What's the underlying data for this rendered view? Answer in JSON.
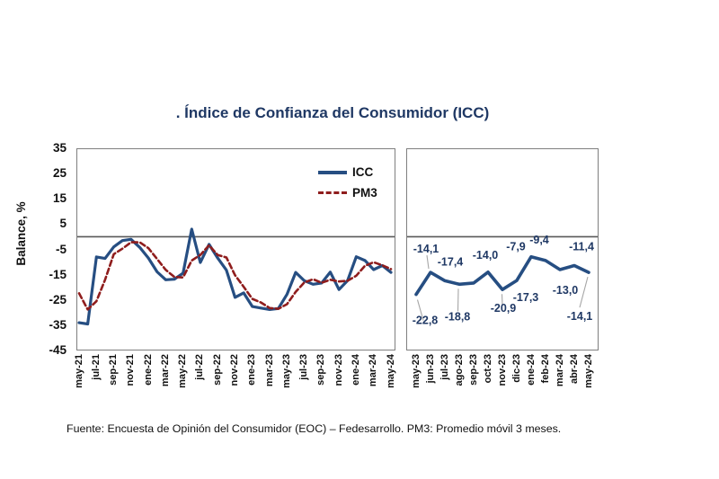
{
  "title": ". Índice de Confianza del Consumidor (ICC)",
  "footer": "Fuente: Encuesta de Opinión del Consumidor (EOC) – Fedesarrollo. PM3: Promedio móvil 3 meses.",
  "y_axis": {
    "label": "Balance, %",
    "ticks": [
      35,
      25,
      15,
      5,
      -5,
      -15,
      -25,
      -35,
      -45
    ],
    "min": -45,
    "max": 35
  },
  "legend": [
    {
      "label": "ICC",
      "style": "solid",
      "color": "#264E82"
    },
    {
      "label": "PM3",
      "style": "dashed",
      "color": "#8F1D1D"
    }
  ],
  "colors": {
    "icc_line": "#264E82",
    "pm3_line": "#8F1D1D",
    "title_text": "#1F3864",
    "data_label_text": "#1F3864",
    "panel_border": "#7F7F7F",
    "zero_line": "#595959",
    "leader_line": "#A6A6A6",
    "tick_text": "#111111"
  },
  "chart_data": [
    {
      "id": "icc-history-panel",
      "type": "line",
      "x": [
        "may-21",
        "jun-21",
        "jul-21",
        "ago-21",
        "sep-21",
        "oct-21",
        "nov-21",
        "dic-21",
        "ene-22",
        "feb-22",
        "mar-22",
        "abr-22",
        "may-22",
        "jun-22",
        "jul-22",
        "ago-22",
        "sep-22",
        "oct-22",
        "nov-22",
        "dic-22",
        "ene-23",
        "feb-23",
        "mar-23",
        "abr-23",
        "may-23",
        "jun-23",
        "jul-23",
        "ago-23",
        "sep-23",
        "oct-23",
        "nov-23",
        "dic-23",
        "ene-24",
        "feb-24",
        "mar-24",
        "abr-24",
        "may-24"
      ],
      "x_ticks_shown": [
        "may-21",
        "jul-21",
        "sep-21",
        "nov-21",
        "ene-22",
        "mar-22",
        "may-22",
        "jul-22",
        "sep-22",
        "nov-22",
        "ene-23",
        "mar-23",
        "may-23",
        "jul-23",
        "sep-23",
        "nov-23",
        "ene-24",
        "mar-24",
        "may-24"
      ],
      "series": [
        {
          "name": "ICC",
          "style": "solid",
          "color": "#264E82",
          "values": [
            -34.0,
            -34.5,
            -8.0,
            -8.6,
            -4.0,
            -1.5,
            -1.0,
            -4.2,
            -8.4,
            -13.9,
            -17.0,
            -16.8,
            -14.4,
            3.0,
            -10.2,
            -3.0,
            -8.4,
            -13.2,
            -24.0,
            -22.2,
            -27.6,
            -28.2,
            -28.8,
            -28.4,
            -22.8,
            -14.1,
            -17.4,
            -18.8,
            -18.3,
            -14.0,
            -20.9,
            -17.3,
            -7.9,
            -9.4,
            -13.0,
            -11.4,
            -14.1
          ]
        },
        {
          "name": "PM3",
          "style": "dashed",
          "color": "#8F1D1D",
          "values": [
            -22.4,
            -28.8,
            -25.5,
            -17.0,
            -6.9,
            -4.7,
            -2.2,
            -2.2,
            -4.5,
            -8.8,
            -13.1,
            -15.9,
            -16.1,
            -9.4,
            -7.2,
            -3.4,
            -7.2,
            -8.2,
            -15.2,
            -19.8,
            -24.6,
            -26.0,
            -28.2,
            -28.5,
            -26.7,
            -21.8,
            -18.1,
            -16.8,
            -18.2,
            -17.0,
            -17.7,
            -17.4,
            -15.4,
            -11.5,
            -10.1,
            -11.3,
            -12.8
          ]
        }
      ],
      "ylim": [
        -45,
        35
      ],
      "grid": false,
      "zero_line": true,
      "legend_position": "top-right-inside"
    },
    {
      "id": "icc-last-13-months-panel",
      "type": "line",
      "x": [
        "may-23",
        "jun-23",
        "jul-23",
        "ago-23",
        "sep-23",
        "oct-23",
        "nov-23",
        "dic-23",
        "ene-24",
        "feb-24",
        "mar-24",
        "abr-24",
        "may-24"
      ],
      "series": [
        {
          "name": "ICC",
          "style": "solid",
          "color": "#264E82",
          "values": [
            -22.8,
            -14.1,
            -17.4,
            -18.8,
            -18.3,
            -14.0,
            -20.9,
            -17.3,
            -7.9,
            -9.4,
            -13.0,
            -11.4,
            -14.1
          ]
        }
      ],
      "data_labels": [
        "-22,8",
        "-14,1",
        "-17,4",
        "-18,8",
        null,
        "-14,0",
        "-20,9",
        "-17,3",
        "-7,9",
        "-9,4",
        "-13,0",
        "-11,4",
        "-14,1"
      ],
      "data_label_placement": [
        "below",
        "above",
        "above",
        "below",
        null,
        "above",
        "below",
        "below",
        "above",
        "above",
        "below",
        "above",
        "below"
      ],
      "data_label_leader": [
        true,
        true,
        false,
        true,
        false,
        false,
        true,
        false,
        false,
        false,
        false,
        false,
        true
      ],
      "ylim": [
        -45,
        35
      ],
      "grid": false,
      "zero_line": true,
      "legend_position": "none"
    }
  ]
}
